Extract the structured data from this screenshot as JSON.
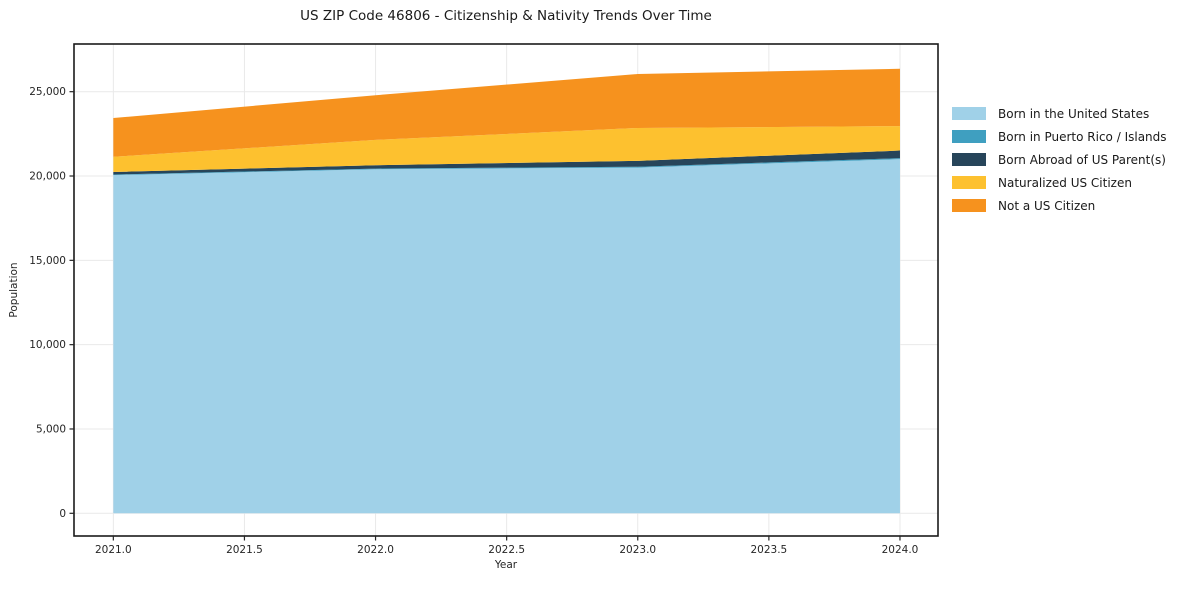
{
  "title": "US ZIP Code 46806 - Citizenship & Nativity Trends Over Time",
  "xlabel": "Year",
  "ylabel": "Population",
  "colors": {
    "born_us": "#a0d1e8",
    "puerto_rico": "#3f9fc0",
    "born_abroad": "#27455a",
    "naturalized": "#fdc12f",
    "not_citizen": "#f6921e",
    "grid": "#e9e9e9",
    "frame": "#1a1a1a",
    "tick_text": "#262626"
  },
  "chart_data": {
    "type": "area",
    "stacked": true,
    "title": "US ZIP Code 46806 - Citizenship & Nativity Trends Over Time",
    "xlabel": "Year",
    "ylabel": "Population",
    "x": [
      2021,
      2022,
      2023,
      2024
    ],
    "series": [
      {
        "name": "Born in the United States",
        "color": "#a0d1e8",
        "values": [
          20050,
          20400,
          20500,
          21000
        ]
      },
      {
        "name": "Born in Puerto Rico / Islands",
        "color": "#3f9fc0",
        "values": [
          40,
          40,
          50,
          60
        ]
      },
      {
        "name": "Born Abroad of US Parent(s)",
        "color": "#27455a",
        "values": [
          150,
          200,
          350,
          450
        ]
      },
      {
        "name": "Naturalized US Citizen",
        "color": "#fdc12f",
        "values": [
          900,
          1500,
          1950,
          1450
        ]
      },
      {
        "name": "Not a US Citizen",
        "color": "#f6921e",
        "values": [
          2300,
          2650,
          3200,
          3400
        ]
      }
    ],
    "totals": [
      23440,
      24790,
      26050,
      26360
    ],
    "xlim": [
      2020.85,
      2024.145
    ],
    "ylim": [
      -1346,
      27828
    ],
    "xticks": {
      "values": [
        2021.0,
        2021.5,
        2022.0,
        2022.5,
        2023.0,
        2023.5,
        2024.0
      ],
      "labels": [
        "2021.0",
        "2021.5",
        "2022.0",
        "2022.5",
        "2023.0",
        "2023.5",
        "2024.0"
      ]
    },
    "yticks": {
      "values": [
        0,
        5000,
        10000,
        15000,
        20000,
        25000
      ],
      "labels": [
        "0",
        "5,000",
        "10,000",
        "15,000",
        "20,000",
        "25,000"
      ]
    },
    "grid": true,
    "legend_position": "right"
  }
}
